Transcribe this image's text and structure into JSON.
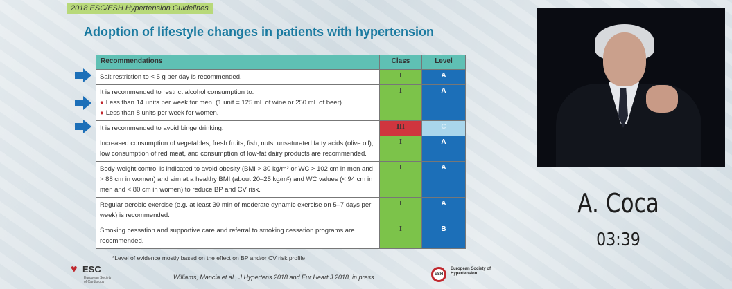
{
  "slide": {
    "header_tag": "2018 ESC/ESH Hypertension Guidelines",
    "title": "Adoption of lifestyle changes in patients with hypertension",
    "table": {
      "headers": {
        "recommendations": "Recommendations",
        "class": "Class",
        "level": "Level"
      },
      "rows": [
        {
          "text": "Salt restriction to < 5 g per day is recommended.",
          "class": "I",
          "level": "A"
        },
        {
          "text": "It is recommended to restrict alcohol consumption to:",
          "bullets": [
            "Less than 14 units per week for men. (1 unit = 125 mL of wine or 250 mL of beer)",
            "Less than 8 units per week for women."
          ],
          "class": "I",
          "level": "A"
        },
        {
          "text": "It is recommended to avoid binge drinking.",
          "class": "III",
          "level": "C"
        },
        {
          "text": "Increased consumption of vegetables, fresh fruits, fish, nuts, unsaturated fatty acids (olive oil), low consumption of red meat, and consumption of low-fat dairy products are recommended.",
          "class": "I",
          "level": "A"
        },
        {
          "text": "Body-weight control is indicated to avoid obesity (BMI > 30 kg/m² or WC > 102 cm in men and > 88 cm in women) and aim at a healthy BMI (about 20–25 kg/m²) and WC values (< 94 cm in men and < 80 cm in women) to reduce BP and CV risk.",
          "class": "I",
          "level": "A"
        },
        {
          "text": "Regular aerobic exercise (e.g. at least 30 min of moderate dynamic exercise on 5–7 days per week) is recommended.",
          "class": "I",
          "level": "A"
        },
        {
          "text": "Smoking cessation and supportive care and referral to smoking cessation programs are recommended.",
          "class": "I",
          "level": "B"
        }
      ]
    },
    "footnote": "*Level of evidence mostly based on the effect on BP and/or CV risk profile",
    "citation": "Williams, Mancia et al., J Hypertens 2018 and Eur Heart J 2018, in press",
    "esc_logo": {
      "name": "ESC",
      "sub": "European Society of Cardiology"
    },
    "esh_logo": {
      "badge": "ESH",
      "text": "European Society of Hypertension"
    }
  },
  "speaker": {
    "name": "A. Coca",
    "time": "03:39"
  },
  "colors": {
    "class_I": "#7cc34a",
    "class_III": "#d0353e",
    "level": "#1c6fb8",
    "level_light": "#a9d6ec",
    "title": "#1a7aa0",
    "header_row": "#5fc0b4"
  }
}
